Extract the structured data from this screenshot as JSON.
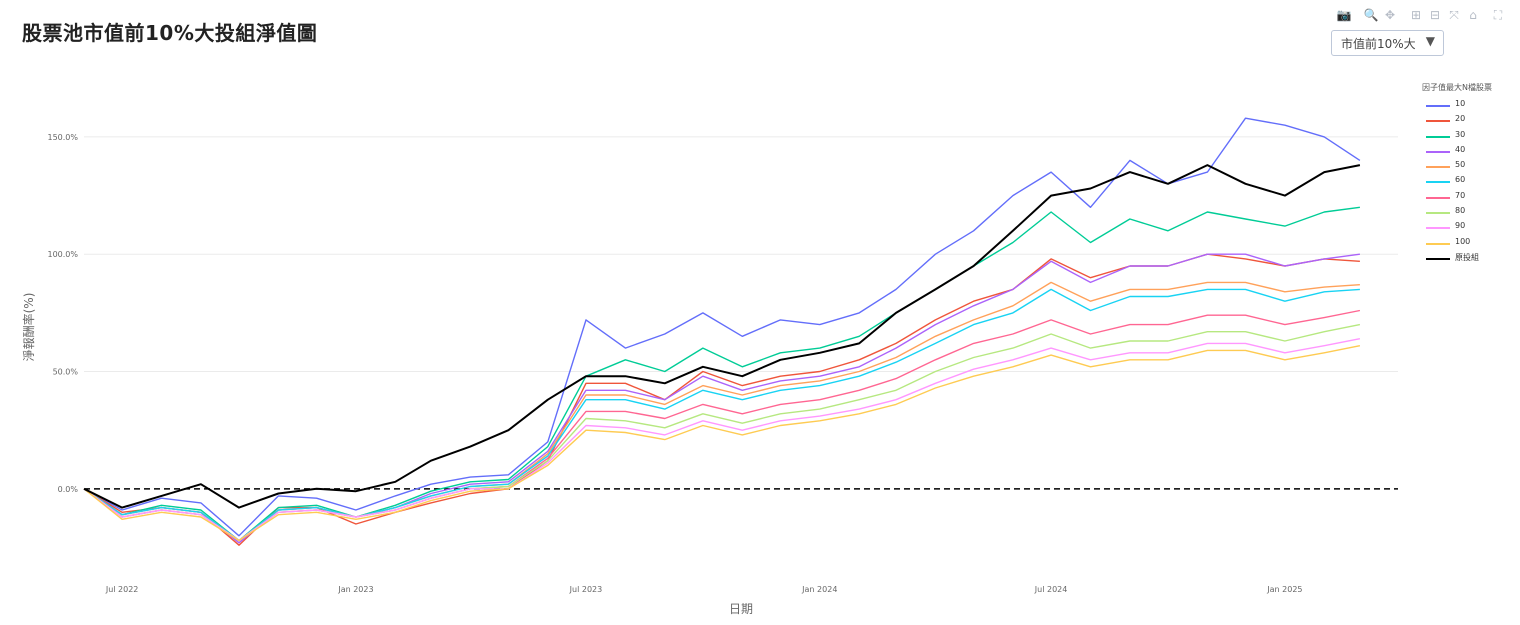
{
  "header": {
    "title": "股票池市值前10%大投組淨值圖"
  },
  "dropdown": {
    "selected": "市值前10%大",
    "arrow_icon": "triangle-down-icon"
  },
  "modebar": {
    "icons": [
      "camera-icon",
      "zoom-icon",
      "pan-icon",
      "zoom-in-icon",
      "zoom-out-icon",
      "autoscale-icon",
      "home-icon",
      "fullscreen-icon"
    ]
  },
  "legend": {
    "title": "因子值最大N檔股票",
    "items": [
      {
        "label": "10",
        "color": "#636efa"
      },
      {
        "label": "20",
        "color": "#ef553b"
      },
      {
        "label": "30",
        "color": "#00cc96"
      },
      {
        "label": "40",
        "color": "#ab63fa"
      },
      {
        "label": "50",
        "color": "#ffa15a"
      },
      {
        "label": "60",
        "color": "#19d3f3"
      },
      {
        "label": "70",
        "color": "#ff6692"
      },
      {
        "label": "80",
        "color": "#b6e880"
      },
      {
        "label": "90",
        "color": "#ff97ff"
      },
      {
        "label": "100",
        "color": "#fecb52"
      },
      {
        "label": "原投組",
        "color": "#000000"
      }
    ]
  },
  "chart_data": {
    "type": "line",
    "title": "股票池市值前10%大投組淨值圖",
    "xlabel": "日期",
    "ylabel": "淨報酬率(%)",
    "x_ticks": [
      "Jul 2022",
      "Jan 2023",
      "Jul 2023",
      "Jan 2024",
      "Jul 2024",
      "Jan 2025"
    ],
    "y_ticks": [
      "0.0%",
      "50.0%",
      "100.0%",
      "150.0%"
    ],
    "xlim": [
      "2022-06-01",
      "2025-03-31"
    ],
    "ylim": [
      -38,
      170
    ],
    "grid": "horizontal",
    "legend_position": "right",
    "reference_line": {
      "y": 0,
      "style": "dashed",
      "color": "#000000"
    },
    "x": [
      "2022-06-01",
      "2022-07-01",
      "2022-08-01",
      "2022-09-01",
      "2022-10-01",
      "2022-11-01",
      "2022-12-01",
      "2023-01-01",
      "2023-02-01",
      "2023-03-01",
      "2023-04-01",
      "2023-05-01",
      "2023-06-01",
      "2023-07-01",
      "2023-08-01",
      "2023-09-01",
      "2023-10-01",
      "2023-11-01",
      "2023-12-01",
      "2024-01-01",
      "2024-02-01",
      "2024-03-01",
      "2024-04-01",
      "2024-05-01",
      "2024-06-01",
      "2024-07-01",
      "2024-08-01",
      "2024-09-01",
      "2024-10-01",
      "2024-11-01",
      "2024-12-01",
      "2025-01-01",
      "2025-02-01",
      "2025-03-01"
    ],
    "series": [
      {
        "name": "10",
        "color": "#636efa",
        "values": [
          0,
          -9,
          -4,
          -6,
          -20,
          -3,
          -4,
          -9,
          -3,
          2,
          5,
          6,
          20,
          72,
          60,
          66,
          75,
          65,
          72,
          70,
          75,
          85,
          100,
          110,
          125,
          135,
          120,
          140,
          130,
          135,
          158,
          155,
          150,
          140
        ]
      },
      {
        "name": "20",
        "color": "#ef553b",
        "values": [
          0,
          -10,
          -8,
          -10,
          -24,
          -8,
          -8,
          -15,
          -10,
          -6,
          -2,
          0,
          12,
          45,
          45,
          38,
          50,
          44,
          48,
          50,
          55,
          62,
          72,
          80,
          85,
          98,
          90,
          95,
          95,
          100,
          98,
          95,
          98,
          97
        ]
      },
      {
        "name": "30",
        "color": "#00cc96",
        "values": [
          0,
          -11,
          -7,
          -9,
          -22,
          -8,
          -7,
          -12,
          -7,
          -1,
          3,
          4,
          18,
          48,
          55,
          50,
          60,
          52,
          58,
          60,
          65,
          75,
          85,
          95,
          105,
          118,
          105,
          115,
          110,
          118,
          115,
          112,
          118,
          120
        ]
      },
      {
        "name": "40",
        "color": "#ab63fa",
        "values": [
          0,
          -11,
          -8,
          -10,
          -23,
          -9,
          -8,
          -12,
          -8,
          -2,
          2,
          3,
          16,
          42,
          42,
          38,
          48,
          42,
          46,
          48,
          52,
          60,
          70,
          78,
          85,
          97,
          88,
          95,
          95,
          100,
          100,
          95,
          98,
          100
        ]
      },
      {
        "name": "50",
        "color": "#ffa15a",
        "values": [
          0,
          -11,
          -8,
          -10,
          -22,
          -9,
          -8,
          -12,
          -8,
          -3,
          1,
          2,
          15,
          40,
          40,
          36,
          44,
          40,
          44,
          46,
          50,
          56,
          65,
          72,
          78,
          88,
          80,
          85,
          85,
          88,
          88,
          84,
          86,
          87
        ]
      },
      {
        "name": "60",
        "color": "#19d3f3",
        "values": [
          0,
          -11,
          -8,
          -10,
          -22,
          -9,
          -8,
          -12,
          -8,
          -3,
          1,
          2,
          14,
          38,
          38,
          34,
          42,
          38,
          42,
          44,
          48,
          54,
          62,
          70,
          75,
          85,
          76,
          82,
          82,
          85,
          85,
          80,
          84,
          85
        ]
      },
      {
        "name": "70",
        "color": "#ff6692",
        "values": [
          0,
          -12,
          -9,
          -11,
          -22,
          -10,
          -9,
          -12,
          -9,
          -4,
          0,
          1,
          13,
          33,
          33,
          30,
          36,
          32,
          36,
          38,
          42,
          47,
          55,
          62,
          66,
          72,
          66,
          70,
          70,
          74,
          74,
          70,
          73,
          76
        ]
      },
      {
        "name": "80",
        "color": "#b6e880",
        "values": [
          0,
          -12,
          -9,
          -11,
          -22,
          -10,
          -9,
          -12,
          -9,
          -4,
          0,
          1,
          12,
          30,
          29,
          26,
          32,
          28,
          32,
          34,
          38,
          42,
          50,
          56,
          60,
          66,
          60,
          63,
          63,
          67,
          67,
          63,
          67,
          70
        ]
      },
      {
        "name": "90",
        "color": "#ff97ff",
        "values": [
          0,
          -12,
          -9,
          -11,
          -22,
          -10,
          -9,
          -12,
          -9,
          -4,
          0,
          0,
          11,
          27,
          26,
          23,
          29,
          25,
          29,
          31,
          34,
          38,
          45,
          51,
          55,
          60,
          55,
          58,
          58,
          62,
          62,
          58,
          61,
          64
        ]
      },
      {
        "name": "100",
        "color": "#fecb52",
        "values": [
          0,
          -13,
          -10,
          -12,
          -22,
          -11,
          -10,
          -13,
          -10,
          -5,
          -1,
          0,
          10,
          25,
          24,
          21,
          27,
          23,
          27,
          29,
          32,
          36,
          43,
          48,
          52,
          57,
          52,
          55,
          55,
          59,
          59,
          55,
          58,
          61
        ]
      },
      {
        "name": "原投組",
        "color": "#000000",
        "values": [
          0,
          -8,
          -3,
          2,
          -8,
          -2,
          0,
          -1,
          3,
          12,
          18,
          25,
          38,
          48,
          48,
          45,
          52,
          48,
          55,
          58,
          62,
          75,
          85,
          95,
          110,
          125,
          128,
          135,
          130,
          138,
          130,
          125,
          135,
          138
        ]
      }
    ]
  }
}
